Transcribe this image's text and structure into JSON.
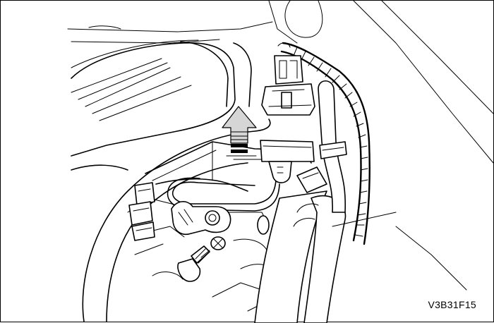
{
  "figure": {
    "code": "V3B31F15"
  }
}
